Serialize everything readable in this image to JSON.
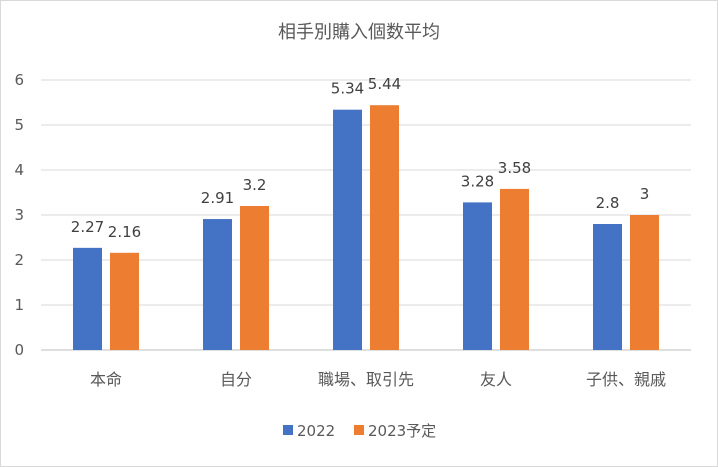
{
  "chart_data": {
    "type": "bar",
    "title": "相手別購入個数平均",
    "categories": [
      "本命",
      "自分",
      "職場、取引先",
      "友人",
      "子供、親戚"
    ],
    "series": [
      {
        "name": "2022",
        "color": "#4472c4",
        "values": [
          2.27,
          2.91,
          5.34,
          3.28,
          2.8
        ],
        "labels": [
          "2.27",
          "2.91",
          "5.34",
          "3.28",
          "2.8"
        ]
      },
      {
        "name": "2023予定",
        "color": "#ed7d31",
        "values": [
          2.16,
          3.2,
          5.44,
          3.58,
          3
        ],
        "labels": [
          "2.16",
          "3.2",
          "5.44",
          "3.58",
          "3"
        ]
      }
    ],
    "ylim": [
      0,
      6
    ],
    "yticks": [
      0,
      1,
      2,
      3,
      4,
      5,
      6
    ],
    "xlabel": "",
    "ylabel": "",
    "grid": true,
    "legend_position": "bottom"
  }
}
